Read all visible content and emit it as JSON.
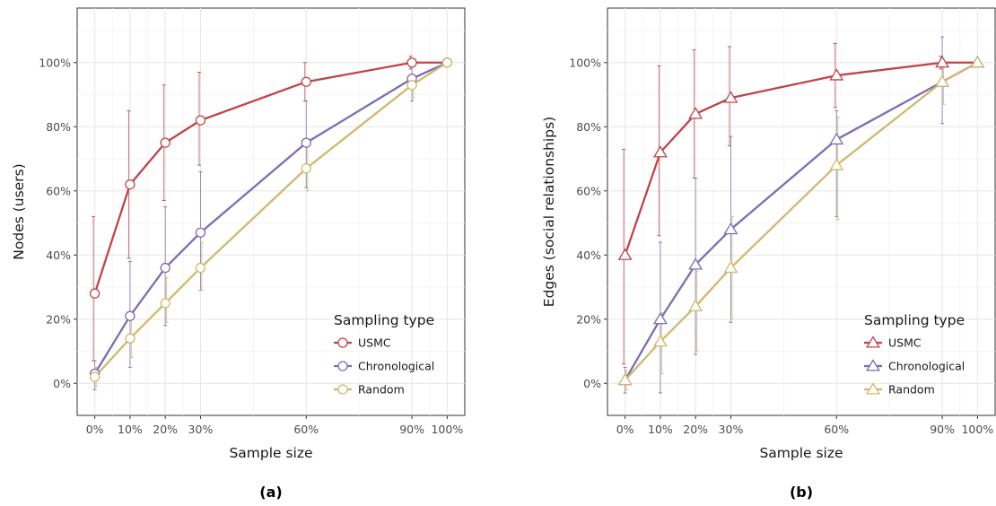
{
  "figure": {
    "x_values": [
      0,
      10,
      20,
      30,
      60,
      90,
      100
    ],
    "x_tick_labels": [
      "0%",
      "10%",
      "20%",
      "30%",
      "60%",
      "90%",
      "100%"
    ],
    "y_ticks": [
      0,
      20,
      40,
      60,
      80,
      100
    ],
    "y_tick_labels": [
      "0%",
      "20%",
      "40%",
      "60%",
      "80%",
      "100%"
    ],
    "legend_title": "Sampling type",
    "colors": {
      "USMC": "#c0444a",
      "Chronological": "#7a6eb4",
      "Random": "#d2b86c"
    }
  },
  "chart_data": [
    {
      "panel_label": "(a)",
      "type": "line",
      "marker": "circle",
      "xlabel": "Sample size",
      "ylabel": "Nodes (users)",
      "xlim": [
        -5,
        105
      ],
      "ylim": [
        -10,
        117
      ],
      "grid": true,
      "legend": "bottom-right",
      "series": [
        {
          "name": "USMC",
          "values": [
            28,
            62,
            75,
            82,
            94,
            100,
            100
          ],
          "err_low": [
            7,
            39,
            57,
            68,
            88,
            98,
            100
          ],
          "err_high": [
            52,
            85,
            93,
            97,
            100,
            102,
            100
          ]
        },
        {
          "name": "Chronological",
          "values": [
            3,
            21,
            36,
            47,
            75,
            95,
            100
          ],
          "err_low": [
            -2,
            5,
            18,
            29,
            61,
            88,
            100
          ],
          "err_high": [
            7,
            38,
            55,
            66,
            88,
            100,
            100
          ]
        },
        {
          "name": "Random",
          "values": [
            2,
            14,
            25,
            36,
            67,
            93,
            100
          ],
          "err_low": [
            -1,
            8,
            19,
            29,
            60,
            89,
            100
          ],
          "err_high": [
            5,
            20,
            33,
            44,
            74,
            96,
            100
          ]
        }
      ]
    },
    {
      "panel_label": "(b)",
      "type": "line",
      "marker": "triangle",
      "xlabel": "Sample size",
      "ylabel": "Edges (social relationships)",
      "xlim": [
        -5,
        105
      ],
      "ylim": [
        -10,
        117
      ],
      "grid": true,
      "legend": "bottom-right",
      "series": [
        {
          "name": "USMC",
          "values": [
            40,
            72,
            84,
            89,
            96,
            100,
            100
          ],
          "err_low": [
            6,
            46,
            64,
            74,
            86,
            98,
            100
          ],
          "err_high": [
            73,
            99,
            104,
            105,
            106,
            102,
            100
          ]
        },
        {
          "name": "Chronological",
          "values": [
            1,
            20,
            37,
            48,
            76,
            94,
            100
          ],
          "err_low": [
            -3,
            -3,
            9,
            19,
            52,
            81,
            100
          ],
          "err_high": [
            5,
            44,
            64,
            77,
            85,
            108,
            100
          ]
        },
        {
          "name": "Random",
          "values": [
            1,
            13,
            24,
            36,
            68,
            94,
            100
          ],
          "err_low": [
            -2,
            3,
            10,
            20,
            51,
            87,
            100
          ],
          "err_high": [
            4,
            22,
            35,
            52,
            83,
            99,
            100
          ]
        }
      ]
    }
  ]
}
